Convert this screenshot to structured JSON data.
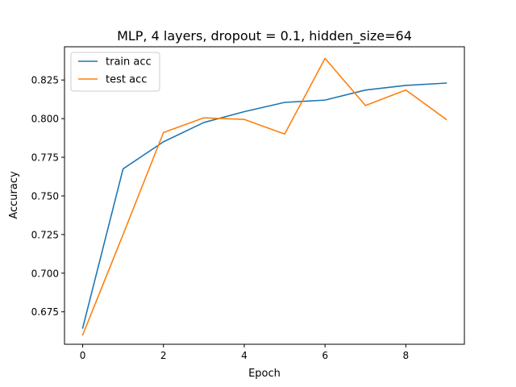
{
  "chart_data": {
    "type": "line",
    "title": "MLP, 4 layers, dropout = 0.1, hidden_size=64",
    "xlabel": "Epoch",
    "ylabel": "Accuracy",
    "x": [
      0,
      1,
      2,
      3,
      4,
      5,
      6,
      7,
      8,
      9
    ],
    "xlim": [
      -0.45,
      9.45
    ],
    "ylim": [
      0.654,
      0.8465
    ],
    "xticks": [
      0,
      2,
      4,
      6,
      8
    ],
    "xtick_labels": [
      "0",
      "2",
      "4",
      "6",
      "8"
    ],
    "yticks": [
      0.675,
      0.7,
      0.725,
      0.75,
      0.775,
      0.8,
      0.825
    ],
    "ytick_labels": [
      "0.675",
      "0.700",
      "0.725",
      "0.750",
      "0.775",
      "0.800",
      "0.825"
    ],
    "grid": false,
    "legend_position": "top-left",
    "series": [
      {
        "name": "train acc",
        "color": "#1f77b4",
        "values": [
          0.6645,
          0.7675,
          0.785,
          0.7975,
          0.8045,
          0.8105,
          0.812,
          0.8185,
          0.8215,
          0.823
        ]
      },
      {
        "name": "test acc",
        "color": "#ff7f0e",
        "values": [
          0.66,
          0.725,
          0.791,
          0.8005,
          0.7995,
          0.79,
          0.839,
          0.8085,
          0.8185,
          0.7995
        ]
      }
    ]
  }
}
